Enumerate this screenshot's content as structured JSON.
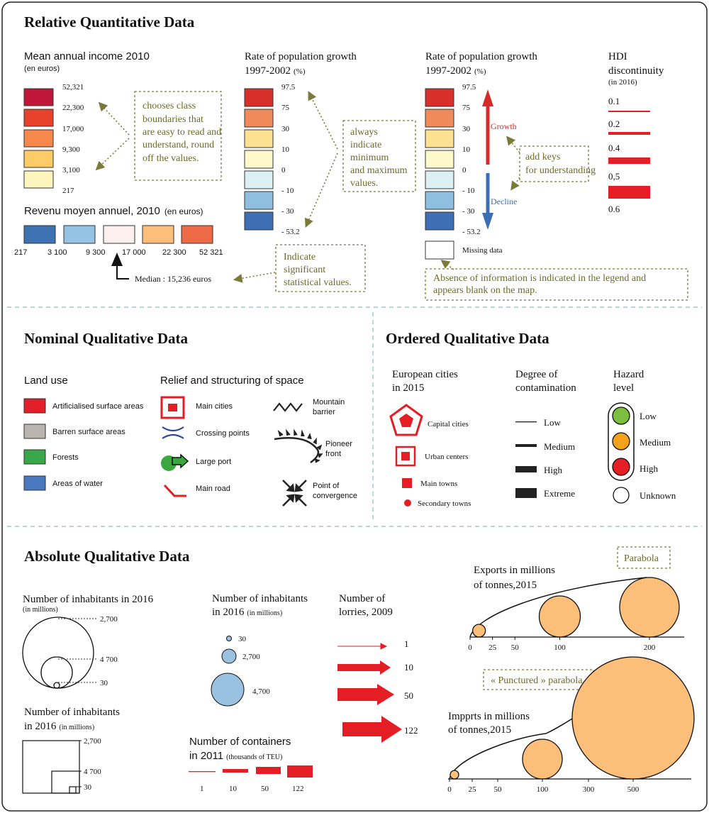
{
  "relative": {
    "title": "Relative Quantitative Data",
    "income": {
      "title": "Mean annual income 2010",
      "unit": "(en euros)",
      "values": [
        "52,321",
        "22,300",
        "17,000",
        "9,300",
        "3,100",
        "217"
      ],
      "colors": [
        "#c0163a",
        "#e8412c",
        "#f5884a",
        "#fdcc66",
        "#fdf5bc"
      ]
    },
    "note_class": "chooses class boundaries that are easy to read and understand, round off the values.",
    "revenu": {
      "title": "Revenu moyen annuel, 2010",
      "unit": "(en euros)",
      "colors": [
        "#3d72b2",
        "#94c3e3",
        "#fbf0ee",
        "#fdbe7c",
        "#ee6a46"
      ],
      "values": [
        "217",
        "3 100",
        "9 300",
        "17 000",
        "22 300",
        "52 321"
      ],
      "median": "Median : 15,236 euros"
    },
    "note_significant": "Indicate significant statistical values.",
    "growth1": {
      "title": "Rate of population growth",
      "period": "1997-2002",
      "unit": "(%)",
      "values": [
        "97.5",
        "75",
        "30",
        "10",
        "0",
        "- 10",
        "- 30",
        "- 53.2"
      ],
      "colors": [
        "#d7302a",
        "#f08a5b",
        "#fde193",
        "#fdf9cb",
        "#dcf0f4",
        "#8fbfe0",
        "#3e6fb5"
      ]
    },
    "note_minmax": "always indicate minimum and maximum values.",
    "growth2": {
      "title": "Rate of population growth",
      "period": "1997-2002",
      "unit": "(%)",
      "values": [
        "97.5",
        "75",
        "30",
        "10",
        "0",
        "- 10",
        "- 30",
        "- 53.2"
      ],
      "growth_label": "Growth",
      "decline_label": "Decline",
      "missing_label": "Missing data"
    },
    "note_keys": "add keys for understanding",
    "note_absence": "Absence of information is indicated in the legend and appears blank on the map.",
    "hdi": {
      "title1": "HDI",
      "title2": "discontinuity",
      "unit": "(in 2016)",
      "values": [
        "0.1",
        "0.2",
        "0.4",
        "0,5",
        "0.6"
      ]
    }
  },
  "nominal": {
    "title": "Nominal Qualitative Data",
    "land_use": {
      "title": "Land use",
      "items": [
        {
          "label": "Artificialised surface areas",
          "color": "#e3202a"
        },
        {
          "label": "Barren surface areas",
          "color": "#bbb5b0"
        },
        {
          "label": "Forests",
          "color": "#38a84a"
        },
        {
          "label": "Areas of water",
          "color": "#4a78c0"
        }
      ]
    },
    "relief": {
      "title": "Relief and structuring of space",
      "main_cities": "Main cities",
      "crossing_points": "Crossing points",
      "large_port": "Large port",
      "main_road": "Main road",
      "mountain_barrier": [
        "Mountain",
        "barrier"
      ],
      "pioneer_front": [
        "Pioneer",
        "front"
      ],
      "convergence": [
        "Point of",
        "convergence"
      ]
    }
  },
  "ordered": {
    "title": "Ordered Qualitative Data",
    "cities": {
      "title": [
        "European cities",
        "in 2015"
      ],
      "capital": "Capital cities",
      "urban": "Urban centers",
      "main_towns": "Main towns",
      "secondary": "Secondary towns"
    },
    "contamination": {
      "title": [
        "Degree of",
        "contamination"
      ],
      "levels": [
        "Low",
        "Medium",
        "High",
        "Extreme"
      ]
    },
    "hazard": {
      "title": [
        "Hazard",
        "level"
      ],
      "levels": [
        {
          "label": "Low",
          "color": "#7cbf3e"
        },
        {
          "label": "Medium",
          "color": "#f4a21c"
        },
        {
          "label": "High",
          "color": "#e31e24"
        },
        {
          "label": "Unknown",
          "color": "#ffffff"
        }
      ]
    }
  },
  "absolute": {
    "title": "Absolute Qualitative Data",
    "nested_circles": {
      "title": "Number of inhabitants in 2016",
      "unit": "(in millions)",
      "values": [
        "2,700",
        "4 700",
        "30"
      ]
    },
    "nested_squares": {
      "title": "Number of inhabitants",
      "title2": "in 2016",
      "unit": "(in millions)",
      "values": [
        "2,700",
        "4 700",
        "30"
      ]
    },
    "blue_circles": {
      "title": "Number of inhabitants",
      "title2": "in 2016",
      "unit": "(in millions)",
      "values": [
        "30",
        "2,700",
        "4,700"
      ]
    },
    "containers": {
      "title": "Number of containers",
      "title2": "in 2011",
      "unit": "(thousands of TEU)",
      "values": [
        "1",
        "10",
        "50",
        "122"
      ]
    },
    "lorries": {
      "title": [
        "Number of",
        "lorries, 2009"
      ],
      "values": [
        "1",
        "10",
        "50",
        "122"
      ]
    },
    "parabola_label": "Parabola",
    "exports": {
      "title": [
        "Exports in millions",
        "of tonnes,2015"
      ],
      "ticks": [
        "0",
        "25",
        "50",
        "100",
        "200"
      ]
    },
    "punctured_label": "« Punctured » parabola",
    "imports": {
      "title": [
        "Impprts in millions",
        "of tonnes,2015"
      ],
      "ticks": [
        "0",
        "25",
        "50",
        "100",
        "300",
        "500"
      ]
    }
  }
}
